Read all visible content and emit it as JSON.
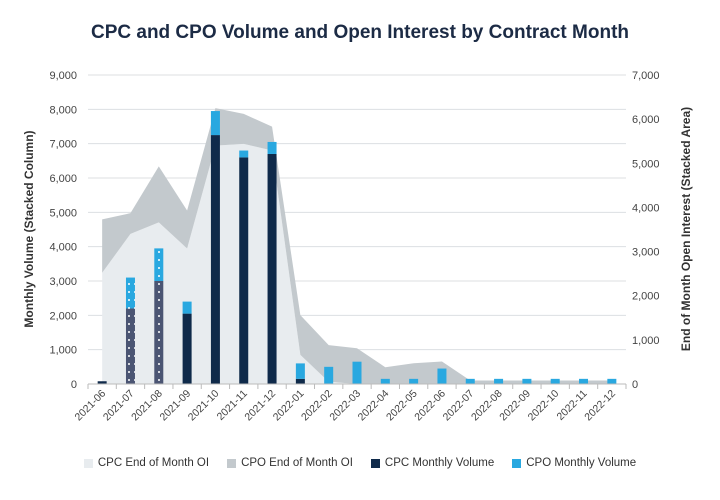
{
  "chart_data": {
    "type": "bar",
    "title": "CPC and CPO Volume and Open Interest by Contract Month",
    "ylabel": "Monthly Volume (Stacked Column)",
    "y2label": "End of Month Open Interest (Stacked Area)",
    "ylim": [
      0,
      9000
    ],
    "y2lim": [
      0,
      7000
    ],
    "yticks": [
      "0",
      "1,000",
      "2,000",
      "3,000",
      "4,000",
      "5,000",
      "6,000",
      "7,000",
      "8,000",
      "9,000"
    ],
    "y2ticks": [
      "0",
      "1,000",
      "2,000",
      "3,000",
      "4,000",
      "5,000",
      "6,000",
      "7,000"
    ],
    "grid": true,
    "legend_position": "bottom",
    "categories": [
      "2021-06",
      "2021-07",
      "2021-08",
      "2021-09",
      "2021-10",
      "2021-11",
      "2021-12",
      "2022-01",
      "2022-02",
      "2022-03",
      "2022-04",
      "2022-05",
      "2022-06",
      "2022-07",
      "2022-08",
      "2022-09",
      "2022-10",
      "2022-11",
      "2022-12"
    ],
    "patterned_categories": [
      "2021-07",
      "2021-08"
    ],
    "series": [
      {
        "name": "CPC End of Month OI",
        "kind": "area",
        "axis": "right",
        "color": "#e8ecef",
        "values": [
          2520,
          3400,
          3660,
          3070,
          5400,
          5440,
          5290,
          660,
          50,
          0,
          0,
          0,
          0,
          0,
          0,
          0,
          0,
          0,
          0
        ]
      },
      {
        "name": "CPO End of Month OI",
        "kind": "area",
        "axis": "right",
        "color": "#c3c9cd",
        "values": [
          1210,
          470,
          1270,
          860,
          850,
          680,
          540,
          900,
          830,
          810,
          380,
          470,
          510,
          80,
          80,
          80,
          80,
          80,
          80
        ]
      },
      {
        "name": "CPC Monthly Volume",
        "kind": "bar",
        "axis": "left",
        "color": "#0f2a4a",
        "values": [
          80,
          2200,
          3000,
          2050,
          7250,
          6600,
          6700,
          150,
          0,
          0,
          0,
          0,
          0,
          0,
          0,
          0,
          0,
          0,
          0
        ]
      },
      {
        "name": "CPO Monthly Volume",
        "kind": "bar",
        "axis": "left",
        "color": "#29a8e0",
        "values": [
          0,
          900,
          950,
          350,
          700,
          200,
          350,
          450,
          500,
          650,
          150,
          150,
          450,
          150,
          150,
          150,
          150,
          150,
          150
        ]
      }
    ]
  }
}
